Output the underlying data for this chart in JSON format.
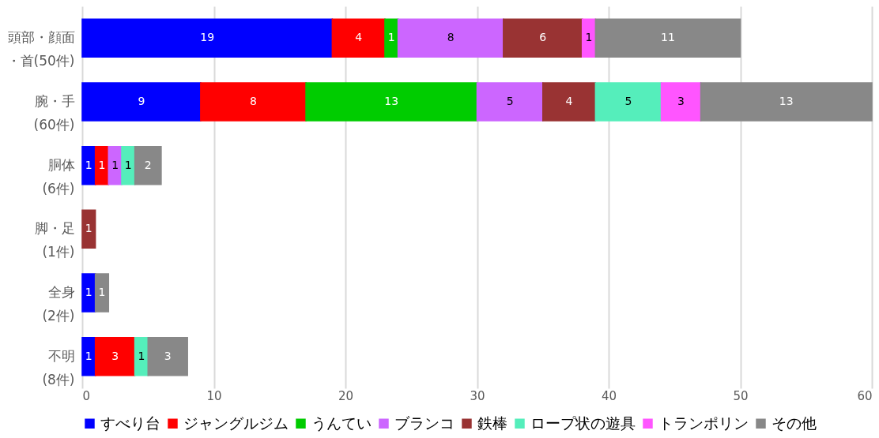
{
  "chart_data": {
    "type": "bar",
    "orientation": "horizontal",
    "stacked": true,
    "data_labels": true,
    "grid": "x",
    "legend": "bottom",
    "categories": [
      "頭部・顔面・首(50件)",
      "腕・手(60件)",
      "胴体(6件)",
      "脚・足(1件)",
      "全身(2件)",
      "不明(8件)"
    ],
    "xlim": [
      0,
      60
    ],
    "xticks": [
      0,
      10,
      20,
      30,
      40,
      50,
      60
    ],
    "series": [
      {
        "name": "すべり台",
        "color": "#0000ff",
        "values": [
          19,
          9,
          1,
          null,
          1,
          1
        ]
      },
      {
        "name": "ジャングルジム",
        "color": "#ff0000",
        "values": [
          4,
          8,
          1,
          null,
          null,
          3
        ]
      },
      {
        "name": "うんてい",
        "color": "#00cc00",
        "values": [
          1,
          13,
          null,
          null,
          null,
          null
        ]
      },
      {
        "name": "ブランコ",
        "color": "#cc66ff",
        "values": [
          8,
          5,
          1,
          null,
          null,
          null
        ]
      },
      {
        "name": "鉄棒",
        "color": "#993333",
        "values": [
          6,
          4,
          null,
          1,
          null,
          null
        ]
      },
      {
        "name": "ロープ状の遊具",
        "color": "#55eebb",
        "values": [
          null,
          5,
          1,
          null,
          null,
          1
        ]
      },
      {
        "name": "トランポリン",
        "color": "#ff55ff",
        "values": [
          1,
          3,
          null,
          null,
          null,
          null
        ]
      },
      {
        "name": "その他",
        "color": "#888888",
        "values": [
          11,
          13,
          2,
          null,
          1,
          3
        ]
      }
    ]
  }
}
